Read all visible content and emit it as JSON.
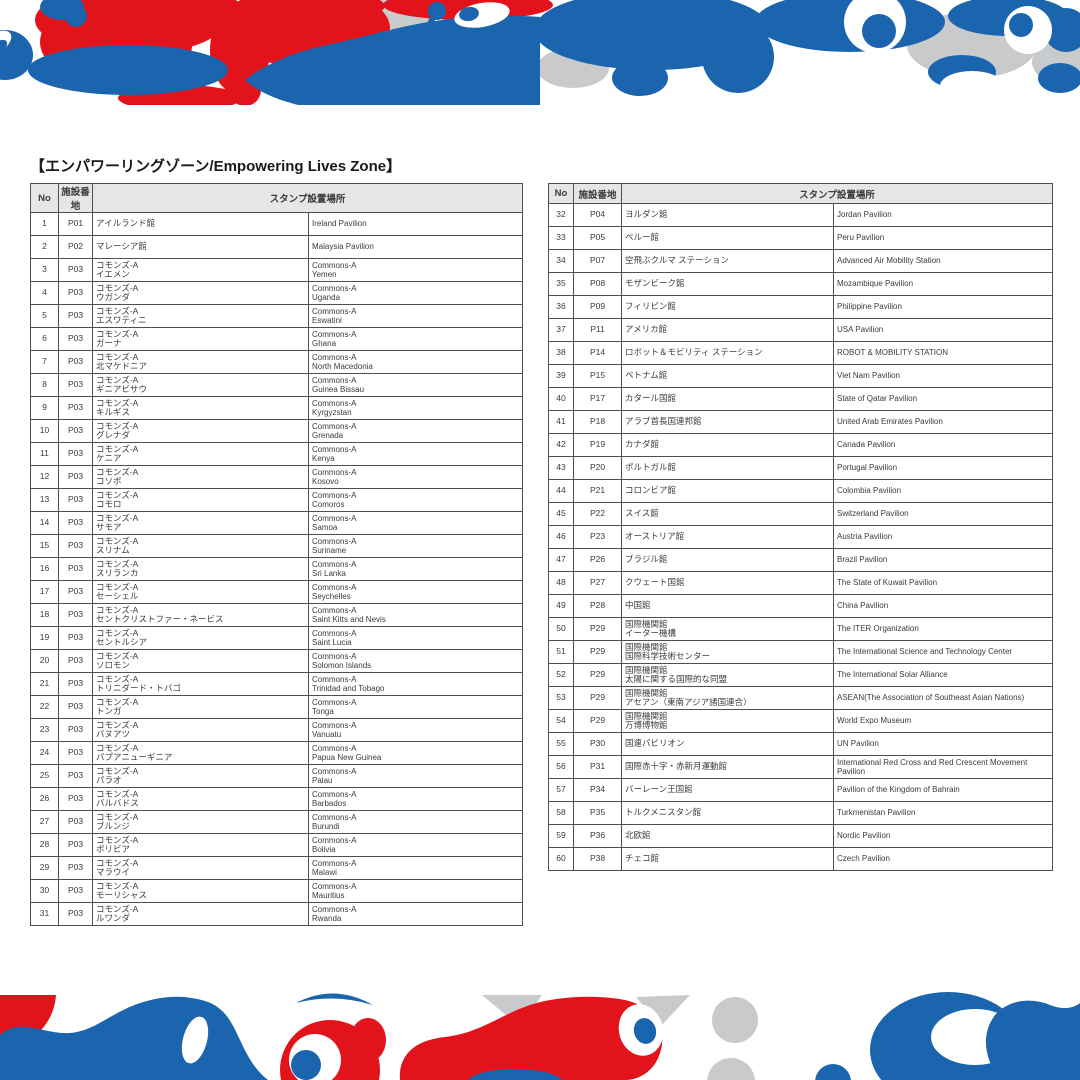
{
  "title": "【エンパワーリングゾーン/Empowering Lives Zone】",
  "columns": {
    "no": "No",
    "code": "施設番地",
    "location": "スタンプ設置場所"
  },
  "colors": {
    "brand_red": "#e2131b",
    "brand_blue": "#1b65ae",
    "brand_gray": "#c9cacc",
    "header_bg": "#e6e6e6",
    "table_border": "#4f4f4f"
  },
  "left_table": {
    "rows": [
      {
        "no": "1",
        "code": "P01",
        "jp": "アイルランド館",
        "en": "Ireland Pavilion"
      },
      {
        "no": "2",
        "code": "P02",
        "jp": "マレーシア館",
        "en": "Malaysia Pavilion"
      },
      {
        "no": "3",
        "code": "P03",
        "jp": "コモンズ-A\nイエメン",
        "en": "Commons-A\nYemen"
      },
      {
        "no": "4",
        "code": "P03",
        "jp": "コモンズ-A\nウガンダ",
        "en": "Commons-A\nUganda"
      },
      {
        "no": "5",
        "code": "P03",
        "jp": "コモンズ-A\nエスワティニ",
        "en": "Commons-A\nEswatini"
      },
      {
        "no": "6",
        "code": "P03",
        "jp": "コモンズ-A\nガーナ",
        "en": "Commons-A\nGhana"
      },
      {
        "no": "7",
        "code": "P03",
        "jp": "コモンズ-A\n北マケドニア",
        "en": "Commons-A\nNorth Macedonia"
      },
      {
        "no": "8",
        "code": "P03",
        "jp": "コモンズ-A\nギニアビサウ",
        "en": "Commons-A\nGuinea Bissau"
      },
      {
        "no": "9",
        "code": "P03",
        "jp": "コモンズ-A\nキルギス",
        "en": "Commons-A\nKyrgyzstan"
      },
      {
        "no": "10",
        "code": "P03",
        "jp": "コモンズ-A\nグレナダ",
        "en": "Commons-A\nGrenada"
      },
      {
        "no": "11",
        "code": "P03",
        "jp": "コモンズ-A\nケニア",
        "en": "Commons-A\nKenya"
      },
      {
        "no": "12",
        "code": "P03",
        "jp": "コモンズ-A\nコソボ",
        "en": "Commons-A\nKosovo"
      },
      {
        "no": "13",
        "code": "P03",
        "jp": "コモンズ-A\nコモロ",
        "en": "Commons-A\nComoros"
      },
      {
        "no": "14",
        "code": "P03",
        "jp": "コモンズ-A\nサモア",
        "en": "Commons-A\nSamoa"
      },
      {
        "no": "15",
        "code": "P03",
        "jp": "コモンズ-A\nスリナム",
        "en": "Commons-A\nSuriname"
      },
      {
        "no": "16",
        "code": "P03",
        "jp": "コモンズ-A\nスリランカ",
        "en": "Commons-A\nSri Lanka"
      },
      {
        "no": "17",
        "code": "P03",
        "jp": "コモンズ-A\nセーシェル",
        "en": "Commons-A\nSeychelles"
      },
      {
        "no": "18",
        "code": "P03",
        "jp": "コモンズ-A\nセントクリストファー・ネービス",
        "en": "Commons-A\nSaint Kitts and Nevis"
      },
      {
        "no": "19",
        "code": "P03",
        "jp": "コモンズ-A\nセントルシア",
        "en": "Commons-A\nSaint Lucia"
      },
      {
        "no": "20",
        "code": "P03",
        "jp": "コモンズ-A\nソロモン",
        "en": "Commons-A\nSolomon Islands"
      },
      {
        "no": "21",
        "code": "P03",
        "jp": "コモンズ-A\nトリニダード・トバゴ",
        "en": "Commons-A\nTrinidad and Tobago"
      },
      {
        "no": "22",
        "code": "P03",
        "jp": "コモンズ-A\nトンガ",
        "en": "Commons-A\nTonga"
      },
      {
        "no": "23",
        "code": "P03",
        "jp": "コモンズ-A\nバヌアツ",
        "en": "Commons-A\nVanuatu"
      },
      {
        "no": "24",
        "code": "P03",
        "jp": "コモンズ-A\nパプアニューギニア",
        "en": "Commons-A\nPapua New Guinea"
      },
      {
        "no": "25",
        "code": "P03",
        "jp": "コモンズ-A\nパラオ",
        "en": "Commons-A\nPalau"
      },
      {
        "no": "26",
        "code": "P03",
        "jp": "コモンズ-A\nバルバドス",
        "en": "Commons-A\nBarbados"
      },
      {
        "no": "27",
        "code": "P03",
        "jp": "コモンズ-A\nブルンジ",
        "en": "Commons-A\nBurundi"
      },
      {
        "no": "28",
        "code": "P03",
        "jp": "コモンズ-A\nボリビア",
        "en": "Commons-A\nBolivia"
      },
      {
        "no": "29",
        "code": "P03",
        "jp": "コモンズ-A\nマラウイ",
        "en": "Commons-A\nMalawi"
      },
      {
        "no": "30",
        "code": "P03",
        "jp": "コモンズ-A\nモーリシャス",
        "en": "Commons-A\nMauritius"
      },
      {
        "no": "31",
        "code": "P03",
        "jp": "コモンズ-A\nルワンダ",
        "en": "Commons-A\nRwanda"
      }
    ]
  },
  "right_table": {
    "rows": [
      {
        "no": "32",
        "code": "P04",
        "jp": "ヨルダン館",
        "en": "Jordan Pavilion"
      },
      {
        "no": "33",
        "code": "P05",
        "jp": "ペルー館",
        "en": "Peru Pavilion"
      },
      {
        "no": "34",
        "code": "P07",
        "jp": "空飛ぶクルマ ステーション",
        "en": "Advanced Air Mobility Station"
      },
      {
        "no": "35",
        "code": "P08",
        "jp": "モザンビーク館",
        "en": "Mozambique Pavilion"
      },
      {
        "no": "36",
        "code": "P09",
        "jp": "フィリピン館",
        "en": "Philippine Pavilion"
      },
      {
        "no": "37",
        "code": "P11",
        "jp": "アメリカ館",
        "en": "USA Pavilion"
      },
      {
        "no": "38",
        "code": "P14",
        "jp": "ロボット＆モビリティ ステーション",
        "en": "ROBOT & MOBILITY STATION"
      },
      {
        "no": "39",
        "code": "P15",
        "jp": "ベトナム館",
        "en": "Viet Nam Pavilion"
      },
      {
        "no": "40",
        "code": "P17",
        "jp": "カタール国館",
        "en": "State of Qatar Pavilion"
      },
      {
        "no": "41",
        "code": "P18",
        "jp": "アラブ首長国連邦館",
        "en": "United Arab Emirates Pavilion"
      },
      {
        "no": "42",
        "code": "P19",
        "jp": "カナダ館",
        "en": "Canada Pavilion"
      },
      {
        "no": "43",
        "code": "P20",
        "jp": "ポルトガル館",
        "en": "Portugal Pavilion"
      },
      {
        "no": "44",
        "code": "P21",
        "jp": "コロンビア館",
        "en": "Colombia Pavilion"
      },
      {
        "no": "45",
        "code": "P22",
        "jp": "スイス館",
        "en": "Switzerland Pavilion"
      },
      {
        "no": "46",
        "code": "P23",
        "jp": "オーストリア館",
        "en": "Austria Pavilion"
      },
      {
        "no": "47",
        "code": "P26",
        "jp": "ブラジル館",
        "en": "Brazil Pavilion"
      },
      {
        "no": "48",
        "code": "P27",
        "jp": "クウェート国館",
        "en": "The State of Kuwait Pavilion"
      },
      {
        "no": "49",
        "code": "P28",
        "jp": "中国館",
        "en": "China Pavilion"
      },
      {
        "no": "50",
        "code": "P29",
        "jp": "国際機関館\nイーター機構",
        "en": "The ITER Organization"
      },
      {
        "no": "51",
        "code": "P29",
        "jp": "国際機関館\n国際科学技術センター",
        "en": "The International Science and Technology Center"
      },
      {
        "no": "52",
        "code": "P29",
        "jp": "国際機関館\n太陽に関する国際的な同盟",
        "en": "The International Solar Alliance"
      },
      {
        "no": "53",
        "code": "P29",
        "jp": "国際機関館\nアセアン（東南アジア諸国連合）",
        "en": "ASEAN(The Association of Southeast Asian Nations)"
      },
      {
        "no": "54",
        "code": "P29",
        "jp": "国際機関館\n万博博物館",
        "en": "World Expo Museum"
      },
      {
        "no": "55",
        "code": "P30",
        "jp": "国連パビリオン",
        "en": "UN Pavilion"
      },
      {
        "no": "56",
        "code": "P31",
        "jp": "国際赤十字・赤新月運動館",
        "en": "International Red Cross and Red Crescent Movement Pavilion"
      },
      {
        "no": "57",
        "code": "P34",
        "jp": "バーレーン王国館",
        "en": "Pavilion of the Kingdom of Bahrain"
      },
      {
        "no": "58",
        "code": "P35",
        "jp": "トルクメニスタン館",
        "en": "Turkmenistan Pavilion"
      },
      {
        "no": "59",
        "code": "P36",
        "jp": "北欧館",
        "en": "Nordic Pavilion"
      },
      {
        "no": "60",
        "code": "P38",
        "jp": "チェコ館",
        "en": "Czech Pavilion"
      }
    ]
  }
}
